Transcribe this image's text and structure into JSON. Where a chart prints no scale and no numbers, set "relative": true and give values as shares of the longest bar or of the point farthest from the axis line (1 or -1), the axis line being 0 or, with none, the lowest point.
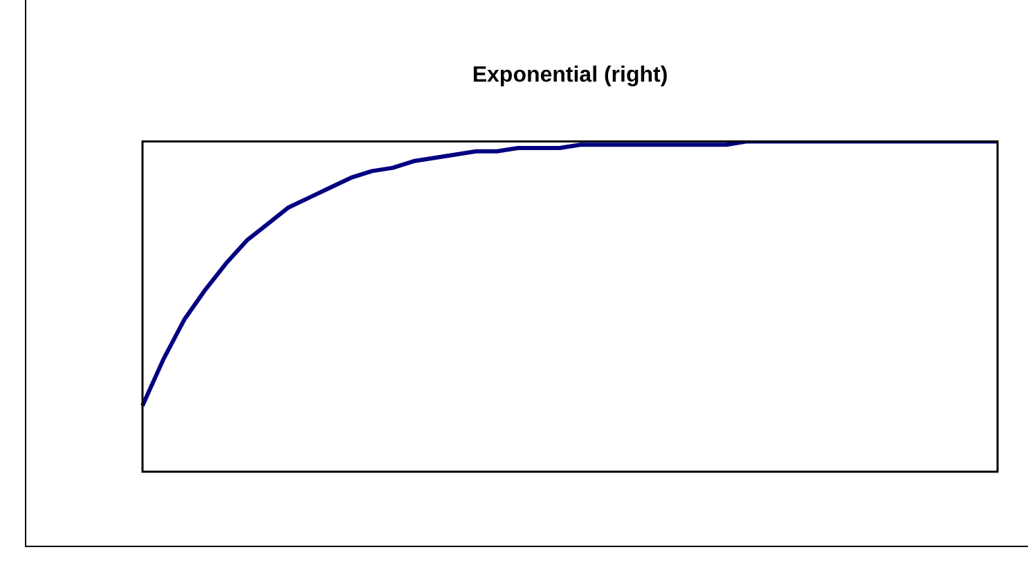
{
  "chart_data": {
    "type": "line",
    "title": "Exponential (right)",
    "relative": true,
    "legend": false,
    "grid": false,
    "marker": "none",
    "line_style": "solid",
    "categories": [
      null,
      null,
      null,
      null,
      null,
      null,
      null,
      null,
      null,
      null,
      null,
      null,
      null,
      null,
      null,
      null,
      null,
      null,
      null,
      null,
      null,
      null,
      null,
      null,
      null,
      null,
      null,
      null,
      null,
      null,
      null,
      null,
      null,
      null,
      null,
      null,
      null,
      null,
      null,
      null,
      null,
      null
    ],
    "series": [
      {
        "color": "#000080",
        "values": [
          0.2,
          0.34,
          0.46,
          0.55,
          0.63,
          0.7,
          0.75,
          0.8,
          0.83,
          0.86,
          0.89,
          0.91,
          0.92,
          0.94,
          0.95,
          0.96,
          0.97,
          0.97,
          0.98,
          0.98,
          0.98,
          0.99,
          0.99,
          0.99,
          0.99,
          0.99,
          0.99,
          0.99,
          0.99,
          1,
          1,
          1,
          1,
          1,
          1,
          1,
          1,
          1,
          1,
          1,
          1,
          1
        ]
      }
    ]
  }
}
